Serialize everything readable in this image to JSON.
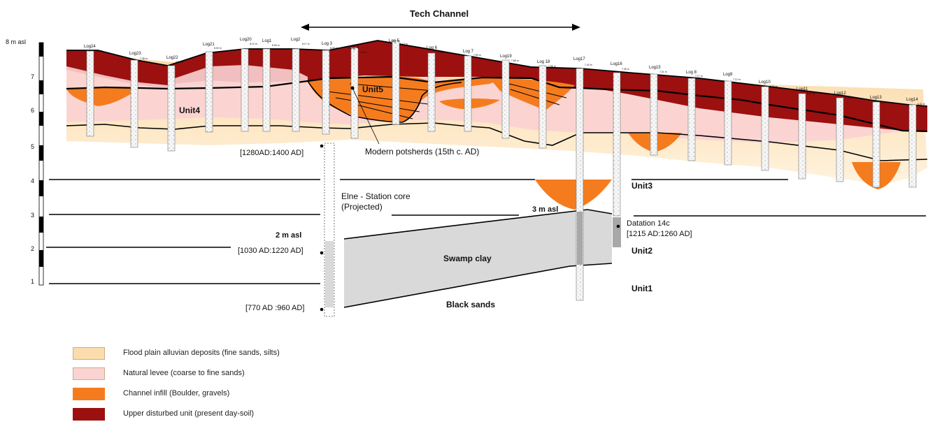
{
  "title": "Tech Channel",
  "scale": {
    "top_label": "8 m asl",
    "ticks": [
      "7",
      "6",
      "5",
      "4",
      "3",
      "2",
      "1"
    ]
  },
  "logs": [
    {
      "name": "Log24",
      "elev": "7.85 m"
    },
    {
      "name": "Log23",
      "elev": "7.38 m"
    },
    {
      "name": "Log22",
      "elev": "7.56 m"
    },
    {
      "name": "Log21",
      "elev": "8.03 m"
    },
    {
      "name": "Log20",
      "elev": "8.12 m"
    },
    {
      "name": "Log1",
      "elev": "8.09 m"
    },
    {
      "name": "Log2",
      "elev": "8.17 m"
    },
    {
      "name": "Log 3",
      "elev": "8.05 m"
    },
    {
      "name": "Log 4",
      "elev": "7.94 m"
    },
    {
      "name": "Log 5",
      "elev": "8.10 m"
    },
    {
      "name": "Log 6",
      "elev": "7.90 m"
    },
    {
      "name": "Log 7",
      "elev": "7.83 m"
    },
    {
      "name": "Log19",
      "elev": "7.65 m"
    },
    {
      "name": "Log 18",
      "elev": "7.58 m"
    },
    {
      "name": "Log17",
      "elev": "7.43 m"
    },
    {
      "name": "Log16",
      "elev": "7.35 m"
    },
    {
      "name": "Log15",
      "elev": "7.31 m"
    },
    {
      "name": "Log 8",
      "elev": "7.17 m"
    },
    {
      "name": "Log9",
      "elev": "7.12 m"
    },
    {
      "name": "Log10",
      "elev": "6.93 m"
    },
    {
      "name": "Log11",
      "elev": "6.81 m"
    },
    {
      "name": "Log12",
      "elev": "6.66 m"
    },
    {
      "name": "Log13",
      "elev": "6.37 m"
    },
    {
      "name": "Log14",
      "elev": "6.31 m"
    }
  ],
  "units": {
    "unit1": "Unit1",
    "unit2": "Unit2",
    "unit3": "Unit3",
    "unit4": "Unit4",
    "unit5": "Unit5"
  },
  "annotations": {
    "potsherds": "Modern potsherds (15th c. AD)",
    "date_top": "[1280AD:1400 AD]",
    "core_name_1": "Elne - Station core",
    "core_name_2": "(Projected)",
    "level_2m": "2 m asl",
    "level_3m": "3 m asl",
    "date_mid": "[1030 AD:1220 AD]",
    "date_bottom": "[770 AD :960 AD]",
    "swamp_clay": "Swamp clay",
    "black_sands": "Black sands",
    "datation_1": "Datation 14c",
    "datation_2": "[1215 AD:1260 AD]"
  },
  "legend": [
    {
      "label": "Flood plain alluvian deposits (fine sands, silts)",
      "color": "#fbdcac"
    },
    {
      "label": "Natural levee (coarse to fine sands)",
      "color": "#fbd3d3"
    },
    {
      "label": "Channel infill (Boulder, gravels)",
      "color": "#f57c1e"
    },
    {
      "label": "Upper disturbed unit (present day-soil)",
      "color": "#9c1010"
    }
  ],
  "colors": {
    "flood": "#fbdcac",
    "levee": "#fbd3d3",
    "channel": "#f57c1e",
    "soil": "#9c1010",
    "clay": "#d9d9d9"
  }
}
